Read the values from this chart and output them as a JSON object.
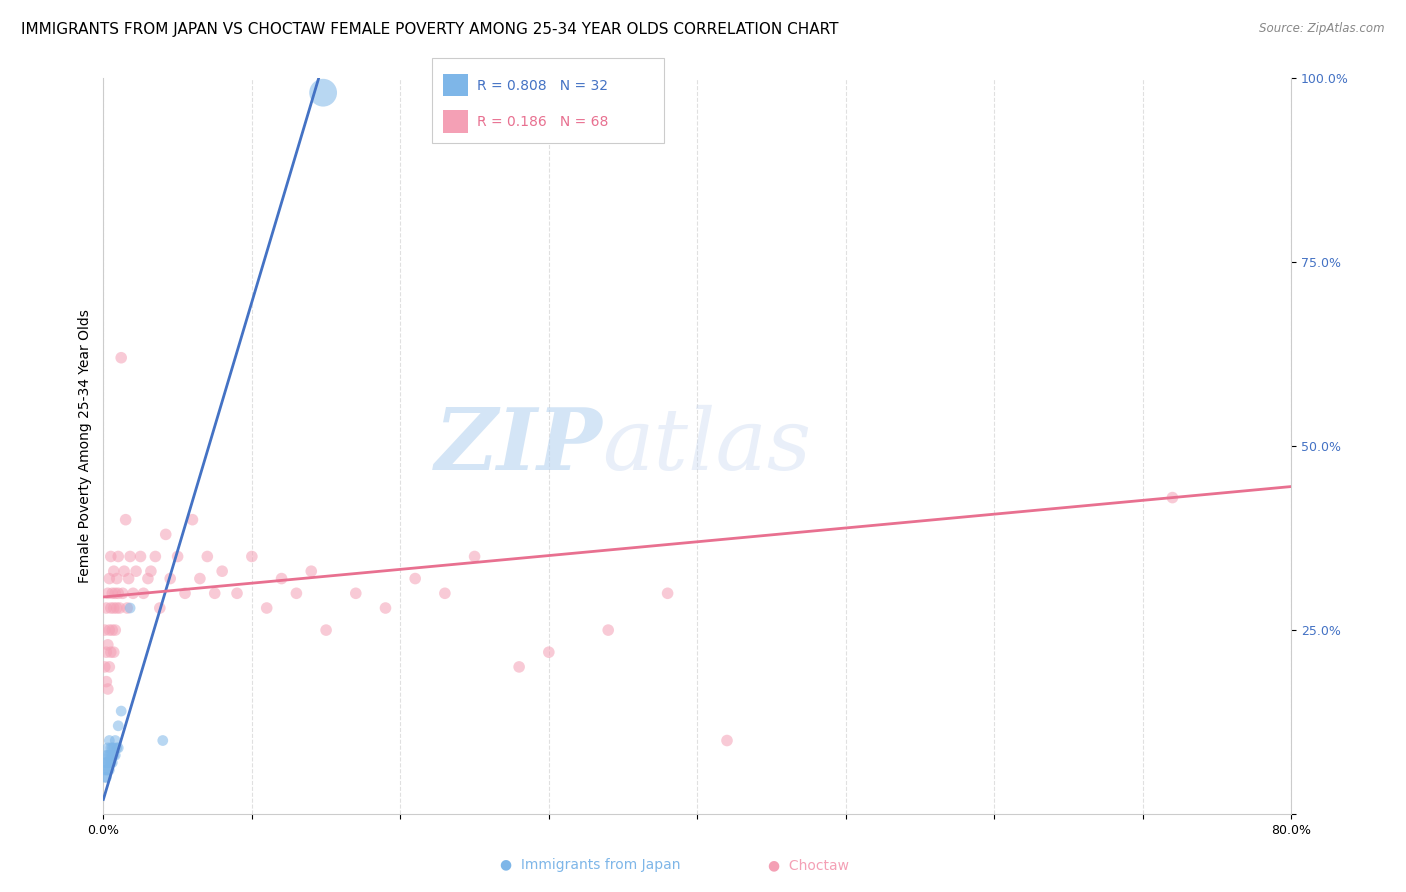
{
  "title": "IMMIGRANTS FROM JAPAN VS CHOCTAW FEMALE POVERTY AMONG 25-34 YEAR OLDS CORRELATION CHART",
  "source": "Source: ZipAtlas.com",
  "ylabel": "Female Poverty Among 25-34 Year Olds",
  "xlim": [
    0.0,
    0.8
  ],
  "ylim": [
    0.0,
    1.0
  ],
  "xticks": [
    0.0,
    0.1,
    0.2,
    0.3,
    0.4,
    0.5,
    0.6,
    0.7,
    0.8
  ],
  "xticklabels": [
    "0.0%",
    "",
    "",
    "",
    "",
    "",
    "",
    "",
    "80.0%"
  ],
  "yticks_right": [
    0.0,
    0.25,
    0.5,
    0.75,
    1.0
  ],
  "yticklabels_right": [
    "",
    "25.0%",
    "50.0%",
    "75.0%",
    "100.0%"
  ],
  "blue_R": 0.808,
  "blue_N": 32,
  "pink_R": 0.186,
  "pink_N": 68,
  "blue_color": "#7EB6E8",
  "pink_color": "#F4A0B5",
  "blue_line_color": "#4472C4",
  "pink_line_color": "#E87090",
  "watermark_zip": "ZIP",
  "watermark_atlas": "atlas",
  "blue_line_x0": 0.0,
  "blue_line_y0": 0.02,
  "blue_line_x1": 0.148,
  "blue_line_y1": 1.02,
  "pink_line_x0": 0.0,
  "pink_line_y0": 0.295,
  "pink_line_x1": 0.8,
  "pink_line_y1": 0.445,
  "blue_points_x": [
    0.001,
    0.001,
    0.001,
    0.002,
    0.002,
    0.002,
    0.002,
    0.003,
    0.003,
    0.003,
    0.003,
    0.004,
    0.004,
    0.004,
    0.004,
    0.005,
    0.005,
    0.005,
    0.006,
    0.006,
    0.006,
    0.007,
    0.007,
    0.008,
    0.008,
    0.009,
    0.01,
    0.01,
    0.012,
    0.018,
    0.04,
    0.148
  ],
  "blue_points_y": [
    0.05,
    0.06,
    0.07,
    0.05,
    0.06,
    0.07,
    0.08,
    0.06,
    0.07,
    0.08,
    0.09,
    0.06,
    0.07,
    0.08,
    0.1,
    0.07,
    0.08,
    0.09,
    0.07,
    0.08,
    0.09,
    0.08,
    0.09,
    0.08,
    0.1,
    0.09,
    0.09,
    0.12,
    0.14,
    0.28,
    0.1,
    0.98
  ],
  "blue_sizes": [
    60,
    60,
    60,
    60,
    60,
    60,
    60,
    60,
    60,
    60,
    60,
    60,
    60,
    60,
    60,
    60,
    60,
    60,
    60,
    60,
    60,
    60,
    60,
    60,
    60,
    60,
    60,
    60,
    60,
    60,
    60,
    400
  ],
  "pink_points_x": [
    0.001,
    0.001,
    0.002,
    0.002,
    0.002,
    0.003,
    0.003,
    0.003,
    0.004,
    0.004,
    0.004,
    0.005,
    0.005,
    0.005,
    0.006,
    0.006,
    0.007,
    0.007,
    0.007,
    0.008,
    0.008,
    0.009,
    0.009,
    0.01,
    0.01,
    0.011,
    0.012,
    0.013,
    0.014,
    0.015,
    0.016,
    0.017,
    0.018,
    0.02,
    0.022,
    0.025,
    0.027,
    0.03,
    0.032,
    0.035,
    0.038,
    0.042,
    0.045,
    0.05,
    0.055,
    0.06,
    0.065,
    0.07,
    0.075,
    0.08,
    0.09,
    0.1,
    0.11,
    0.12,
    0.13,
    0.14,
    0.15,
    0.17,
    0.19,
    0.21,
    0.23,
    0.25,
    0.28,
    0.3,
    0.34,
    0.38,
    0.42,
    0.72
  ],
  "pink_points_y": [
    0.2,
    0.25,
    0.22,
    0.28,
    0.18,
    0.23,
    0.3,
    0.17,
    0.25,
    0.32,
    0.2,
    0.28,
    0.22,
    0.35,
    0.25,
    0.3,
    0.28,
    0.33,
    0.22,
    0.3,
    0.25,
    0.32,
    0.28,
    0.3,
    0.35,
    0.28,
    0.62,
    0.3,
    0.33,
    0.4,
    0.28,
    0.32,
    0.35,
    0.3,
    0.33,
    0.35,
    0.3,
    0.32,
    0.33,
    0.35,
    0.28,
    0.38,
    0.32,
    0.35,
    0.3,
    0.4,
    0.32,
    0.35,
    0.3,
    0.33,
    0.3,
    0.35,
    0.28,
    0.32,
    0.3,
    0.33,
    0.25,
    0.3,
    0.28,
    0.32,
    0.3,
    0.35,
    0.2,
    0.22,
    0.25,
    0.3,
    0.1,
    0.43
  ],
  "pink_sizes": [
    70,
    70,
    70,
    70,
    70,
    70,
    70,
    70,
    70,
    70,
    70,
    70,
    70,
    70,
    70,
    70,
    70,
    70,
    70,
    70,
    70,
    70,
    70,
    70,
    70,
    70,
    70,
    70,
    70,
    70,
    70,
    70,
    70,
    70,
    70,
    70,
    70,
    70,
    70,
    70,
    70,
    70,
    70,
    70,
    70,
    70,
    70,
    70,
    70,
    70,
    70,
    70,
    70,
    70,
    70,
    70,
    70,
    70,
    70,
    70,
    70,
    70,
    70,
    70,
    70,
    70,
    70,
    70
  ],
  "grid_color": "#DDDDDD",
  "background_color": "#FFFFFF",
  "title_fontsize": 11,
  "axis_label_fontsize": 10,
  "tick_fontsize": 9,
  "right_tick_color": "#4472C4"
}
